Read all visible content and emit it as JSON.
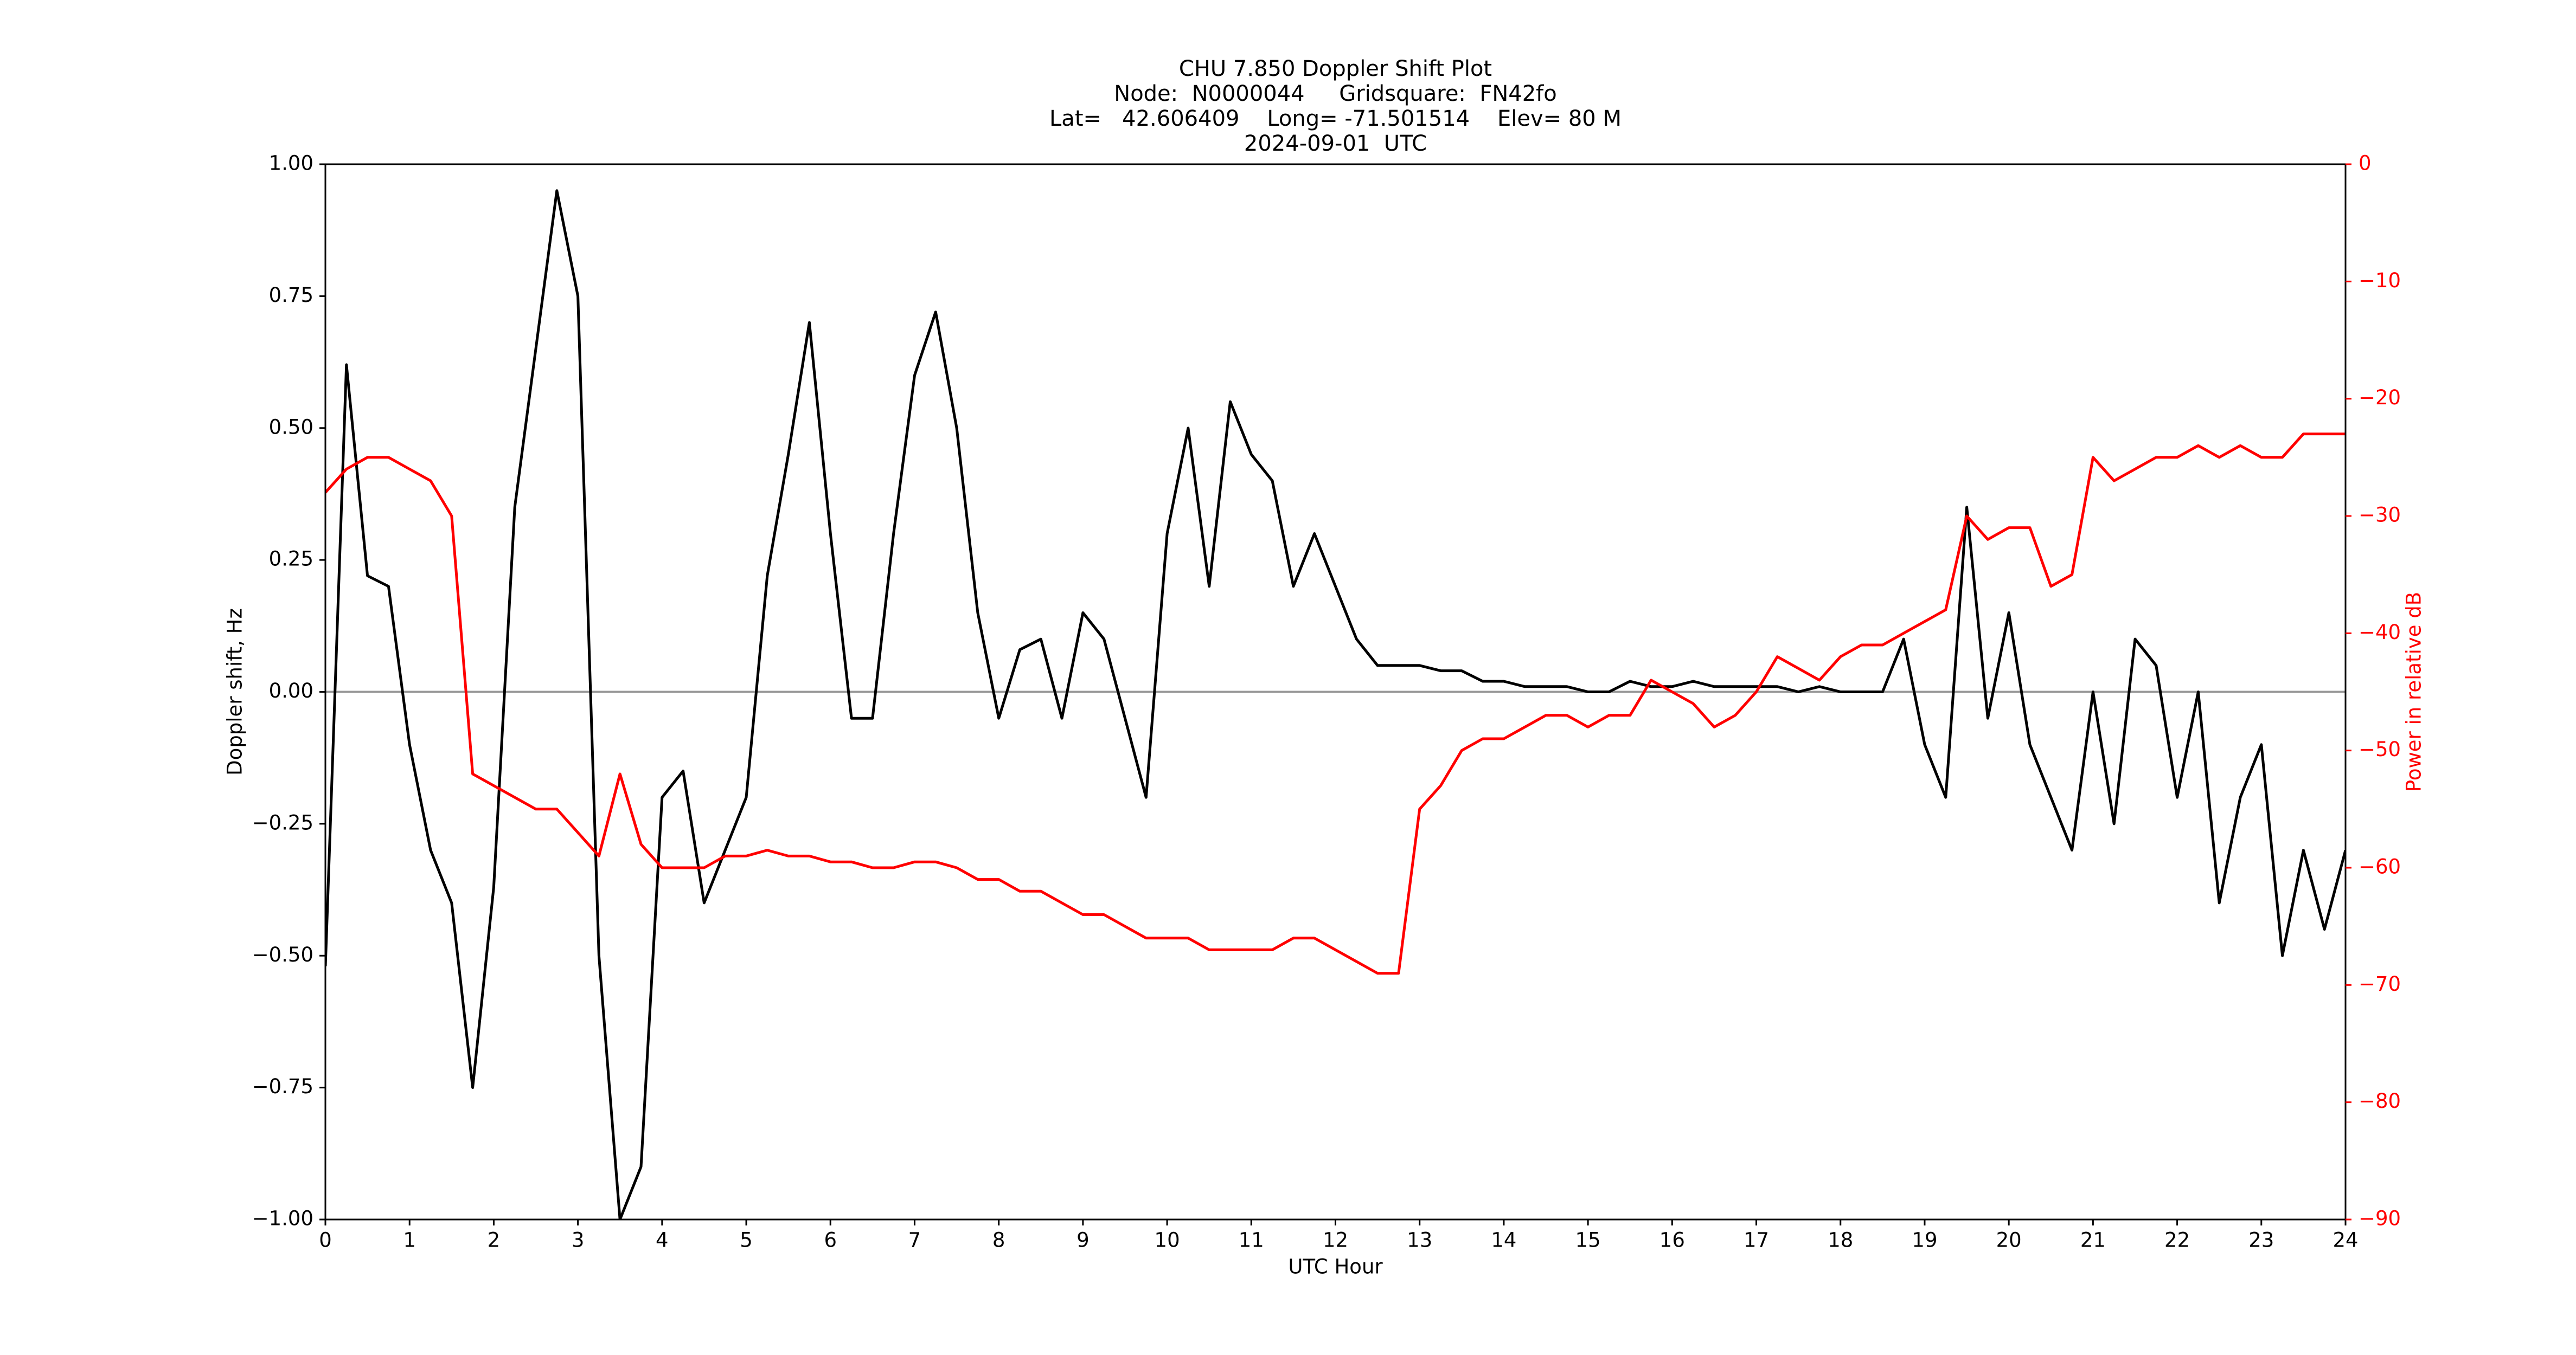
{
  "chart_data": {
    "type": "line",
    "title": [
      "CHU 7.850 Doppler Shift Plot",
      "Node:  N0000044     Gridsquare:  FN42fo",
      "Lat=   42.606409    Long= -71.501514    Elev= 80 M",
      "2024-09-01  UTC"
    ],
    "x_label": "UTC Hour",
    "y_label": "Doppler shift, Hz",
    "y2_label": "Power in relative dB",
    "x": [
      0,
      0.25,
      0.5,
      0.75,
      1,
      1.25,
      1.5,
      1.75,
      2,
      2.25,
      2.5,
      2.75,
      3,
      3.25,
      3.5,
      3.75,
      4,
      4.25,
      4.5,
      4.75,
      5,
      5.25,
      5.5,
      5.75,
      6,
      6.25,
      6.5,
      6.75,
      7,
      7.25,
      7.5,
      7.75,
      8,
      8.25,
      8.5,
      8.75,
      9,
      9.25,
      9.5,
      9.75,
      10,
      10.25,
      10.5,
      10.75,
      11,
      11.25,
      11.5,
      11.75,
      12,
      12.25,
      12.5,
      12.75,
      13,
      13.25,
      13.5,
      13.75,
      14,
      14.25,
      14.5,
      14.75,
      15,
      15.25,
      15.5,
      15.75,
      16,
      16.25,
      16.5,
      16.75,
      17,
      17.25,
      17.5,
      17.75,
      18,
      18.25,
      18.5,
      18.75,
      19,
      19.25,
      19.5,
      19.75,
      20,
      20.25,
      20.5,
      20.75,
      21,
      21.25,
      21.5,
      21.75,
      22,
      22.25,
      22.5,
      22.75,
      23,
      23.25,
      23.5,
      23.75,
      24
    ],
    "series": [
      {
        "name": "Doppler shift",
        "color": "#000000",
        "axis": "y",
        "values": [
          -0.52,
          0.62,
          0.22,
          0.2,
          -0.1,
          -0.3,
          -0.4,
          -0.75,
          -0.37,
          0.35,
          0.65,
          0.95,
          0.75,
          -0.5,
          -1.0,
          -0.9,
          -0.2,
          -0.15,
          -0.4,
          -0.3,
          -0.2,
          0.22,
          0.45,
          0.7,
          0.3,
          -0.05,
          -0.05,
          0.3,
          0.6,
          0.72,
          0.5,
          0.15,
          -0.05,
          0.08,
          0.1,
          -0.05,
          0.15,
          0.1,
          -0.05,
          -0.2,
          0.3,
          0.5,
          0.2,
          0.55,
          0.45,
          0.4,
          0.2,
          0.3,
          0.2,
          0.1,
          0.05,
          0.05,
          0.05,
          0.04,
          0.04,
          0.02,
          0.02,
          0.01,
          0.01,
          0.01,
          0.0,
          0.0,
          0.02,
          0.01,
          0.01,
          0.02,
          0.01,
          0.01,
          0.01,
          0.01,
          0.0,
          0.01,
          0.0,
          0.0,
          0.0,
          0.1,
          -0.1,
          -0.2,
          0.35,
          -0.05,
          0.15,
          -0.1,
          -0.2,
          -0.3,
          0.0,
          -0.25,
          0.1,
          0.05,
          -0.2,
          0.0,
          -0.4,
          -0.2,
          -0.1,
          -0.5,
          -0.3,
          -0.45,
          -0.3
        ]
      },
      {
        "name": "Power",
        "color": "#ff0000",
        "axis": "y2",
        "values": [
          -28,
          -26,
          -25,
          -25,
          -26,
          -27,
          -30,
          -52,
          -53,
          -54,
          -55,
          -55,
          -57,
          -59,
          -52,
          -58,
          -60,
          -60,
          -60,
          -59,
          -59,
          -58.5,
          -59,
          -59,
          -59.5,
          -59.5,
          -60,
          -60,
          -59.5,
          -59.5,
          -60,
          -61,
          -61,
          -62,
          -62,
          -63,
          -64,
          -64,
          -65,
          -66,
          -66,
          -66,
          -67,
          -67,
          -67,
          -67,
          -66,
          -66,
          -67,
          -68,
          -69,
          -69,
          -55,
          -53,
          -50,
          -49,
          -49,
          -48,
          -47,
          -47,
          -48,
          -47,
          -47,
          -44,
          -45,
          -46,
          -48,
          -47,
          -45,
          -42,
          -43,
          -44,
          -42,
          -41,
          -41,
          -40,
          -39,
          -38,
          -30,
          -32,
          -31,
          -31,
          -36,
          -35,
          -25,
          -27,
          -26,
          -25,
          -25,
          -24,
          -25,
          -24,
          -25,
          -25,
          -23,
          -23,
          -23
        ]
      }
    ],
    "hline": 0,
    "hline_color": "#999999",
    "xlim": [
      0,
      24
    ],
    "xticks": [
      0,
      1,
      2,
      3,
      4,
      5,
      6,
      7,
      8,
      9,
      10,
      11,
      12,
      13,
      14,
      15,
      16,
      17,
      18,
      19,
      20,
      21,
      22,
      23,
      24
    ],
    "ylim": [
      -1,
      1
    ],
    "yticks": [
      {
        "value": -1,
        "label": "−1.00"
      },
      {
        "value": -0.75,
        "label": "−0.75"
      },
      {
        "value": -0.5,
        "label": "−0.50"
      },
      {
        "value": -0.25,
        "label": "−0.25"
      },
      {
        "value": 0,
        "label": "0.00"
      },
      {
        "value": 0.25,
        "label": "0.25"
      },
      {
        "value": 0.5,
        "label": "0.50"
      },
      {
        "value": 0.75,
        "label": "0.75"
      },
      {
        "value": 1,
        "label": "1.00"
      }
    ],
    "y2lim": [
      -90,
      0
    ],
    "y2ticks": [
      0,
      {
        "value": -10,
        "label": "−10"
      },
      {
        "value": -20,
        "label": "−20"
      },
      {
        "value": -30,
        "label": "−30"
      },
      {
        "value": -40,
        "label": "−40"
      },
      {
        "value": -50,
        "label": "−50"
      },
      {
        "value": -60,
        "label": "−60"
      },
      {
        "value": -70,
        "label": "−70"
      },
      {
        "value": -80,
        "label": "−80"
      },
      {
        "value": -90,
        "label": "−90"
      }
    ],
    "y2_color": "#ff0000",
    "grid": false
  }
}
